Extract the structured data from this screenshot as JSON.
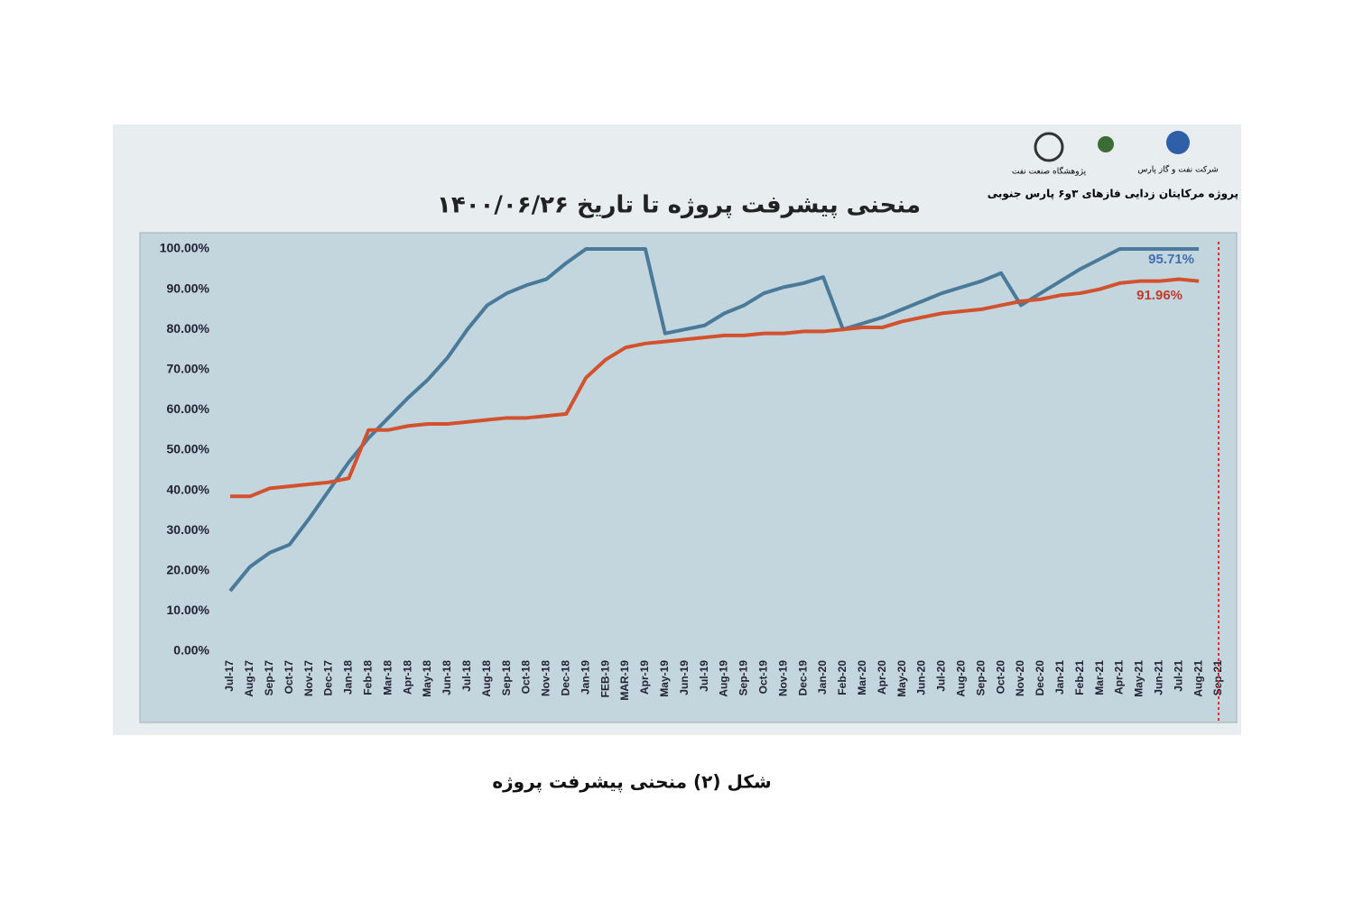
{
  "header": {
    "project": "پروژه مرکاپتان زدایی فازهای ۳و۶ پارس جنوبی",
    "logos": [
      "پژوهشگاه صنعت نفت",
      "شرکت نفت و گاز پارس"
    ]
  },
  "chart_data": {
    "type": "line",
    "title": "منحنی پیشرفت پروژه تا تاریخ ۱۴۰۰/۰۶/۲۶",
    "categories": [
      "Jul-17",
      "Aug-17",
      "Sep-17",
      "Oct-17",
      "Nov-17",
      "Dec-17",
      "Jan-18",
      "Feb-18",
      "Mar-18",
      "Apr-18",
      "May-18",
      "Jun-18",
      "Jul-18",
      "Aug-18",
      "Sep-18",
      "Oct-18",
      "Nov-18",
      "Dec-18",
      "Jan-19",
      "FEB-19",
      "MAR-19",
      "Apr-19",
      "May-19",
      "Jun-19",
      "Jul-19",
      "Aug-19",
      "Sep-19",
      "Oct-19",
      "Nov-19",
      "Dec-19",
      "Jan-20",
      "Feb-20",
      "Mar-20",
      "Apr-20",
      "May-20",
      "Jun-20",
      "Jul-20",
      "Aug-20",
      "Sep-20",
      "Oct-20",
      "Nov-20",
      "Dec-20",
      "Jan-21",
      "Feb-21",
      "Mar-21",
      "Apr-21",
      "May-21",
      "Jun-21",
      "Jul-21",
      "Aug-21",
      "Sep-21"
    ],
    "series": [
      {
        "color": "#4a7a99",
        "values": [
          15,
          21,
          24.5,
          26.5,
          33,
          40,
          47,
          53,
          58,
          63,
          67.5,
          73,
          80,
          86,
          89,
          91,
          92.5,
          96.5,
          100,
          100,
          100,
          100,
          79,
          80,
          81,
          84,
          86,
          89,
          90.5,
          91.5,
          93,
          80,
          81.5,
          83,
          85,
          87,
          89,
          90.5,
          92,
          94,
          86,
          89,
          92,
          95,
          97.5,
          100,
          100,
          100,
          100,
          100,
          null
        ]
      },
      {
        "color": "#d2522f",
        "values": [
          38.5,
          38.5,
          40.5,
          41,
          41.5,
          42,
          43,
          55,
          55,
          56,
          56.5,
          56.5,
          57,
          57.5,
          58,
          58,
          58.5,
          59,
          68,
          72.5,
          75.5,
          76.5,
          77,
          77.5,
          78,
          78.5,
          78.5,
          79,
          79,
          79.5,
          79.5,
          80,
          80.5,
          80.5,
          82,
          83,
          84,
          84.5,
          85,
          86,
          87,
          87.5,
          88.5,
          89,
          90,
          91.5,
          92,
          92,
          92.5,
          92,
          null
        ]
      }
    ],
    "annotations": [
      {
        "text": "95.71%",
        "color": "#3f6fb0"
      },
      {
        "text": "91.96%",
        "color": "#c23a2b"
      }
    ],
    "ylim": [
      0,
      100
    ],
    "yticks": [
      {
        "value": 0,
        "label": "0.00%"
      },
      {
        "value": 10,
        "label": "10.00%"
      },
      {
        "value": 20,
        "label": "20.00%"
      },
      {
        "value": 30,
        "label": "30.00%"
      },
      {
        "value": 40,
        "label": "40.00%"
      },
      {
        "value": 50,
        "label": "50.00%"
      },
      {
        "value": 60,
        "label": "60.00%"
      },
      {
        "value": 70,
        "label": "70.00%"
      },
      {
        "value": 80,
        "label": "80.00%"
      },
      {
        "value": 90,
        "label": "90.00%"
      },
      {
        "value": 100,
        "label": "100.00%"
      }
    ],
    "grid": false
  },
  "caption": "شکل (۲) منحنی پیشرفت پروژه"
}
